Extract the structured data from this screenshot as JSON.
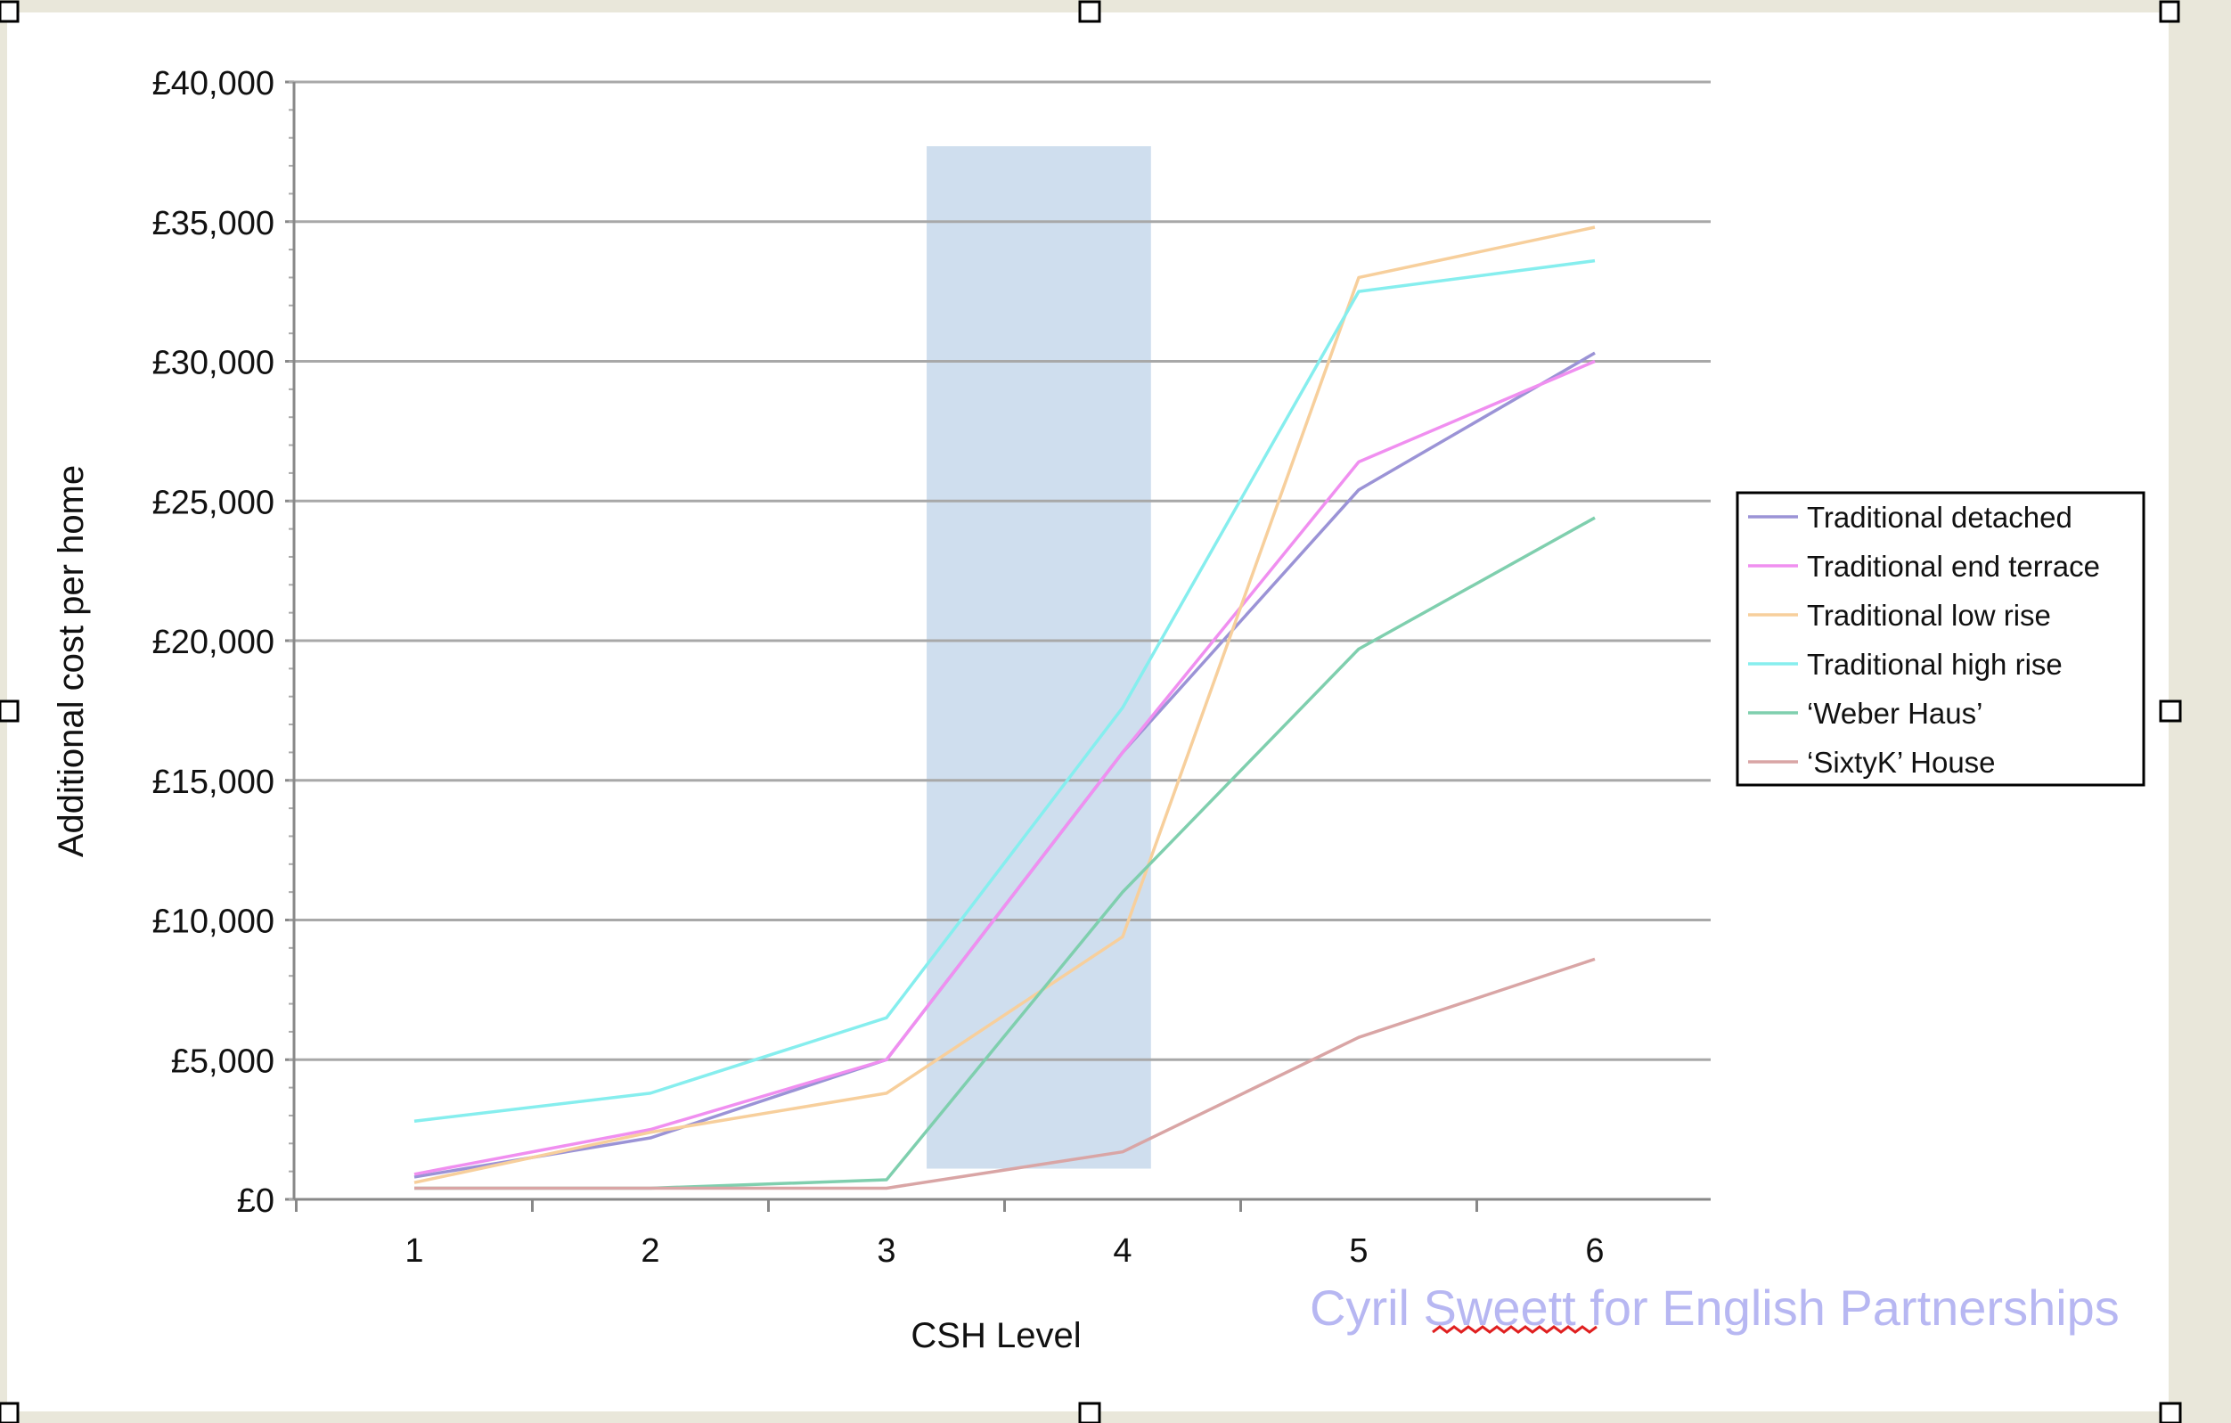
{
  "chart_data": {
    "type": "line",
    "categories": [
      "1",
      "2",
      "3",
      "4",
      "5",
      "6"
    ],
    "x": [
      1,
      2,
      3,
      4,
      5,
      6
    ],
    "xlabel": "CSH Level",
    "ylabel": "Additional cost per home",
    "ylim": [
      0,
      40000
    ],
    "yticks": [
      0,
      5000,
      10000,
      15000,
      20000,
      25000,
      30000,
      35000,
      40000
    ],
    "ytick_labels": [
      "£0",
      "£5,000",
      "£10,000",
      "£15,000",
      "£20,000",
      "£25,000",
      "£30,000",
      "£35,000",
      "£40,000"
    ],
    "grid": true,
    "legend_position": "right",
    "highlight_band": {
      "x_from": 3.17,
      "x_to": 4.12,
      "y_from": 1100,
      "y_to": 37700,
      "color": "#cfdeee"
    },
    "series": [
      {
        "name": "Traditional detached",
        "color": "#9b93d6",
        "values": [
          800,
          2200,
          5000,
          16000,
          25400,
          30300
        ]
      },
      {
        "name": "Traditional end terrace",
        "color": "#f08ff0",
        "values": [
          900,
          2500,
          5000,
          16000,
          26400,
          30000
        ]
      },
      {
        "name": "Traditional low rise",
        "color": "#f7cf9c",
        "values": [
          600,
          2400,
          3800,
          9400,
          33000,
          34800
        ]
      },
      {
        "name": "Traditional high rise",
        "color": "#86eeee",
        "values": [
          2800,
          3800,
          6500,
          17600,
          32500,
          33600
        ]
      },
      {
        "name": "‘Weber Haus’",
        "color": "#7fcfae",
        "values": [
          400,
          400,
          700,
          11000,
          19700,
          24400
        ]
      },
      {
        "name": "‘SixtyK’ House",
        "color": "#d9a5a5",
        "values": [
          400,
          400,
          400,
          1700,
          5800,
          8600
        ]
      }
    ]
  },
  "credit": {
    "prefix": "Cyril ",
    "sweett": "Sweett",
    "suffix": " for English Partnerships"
  }
}
